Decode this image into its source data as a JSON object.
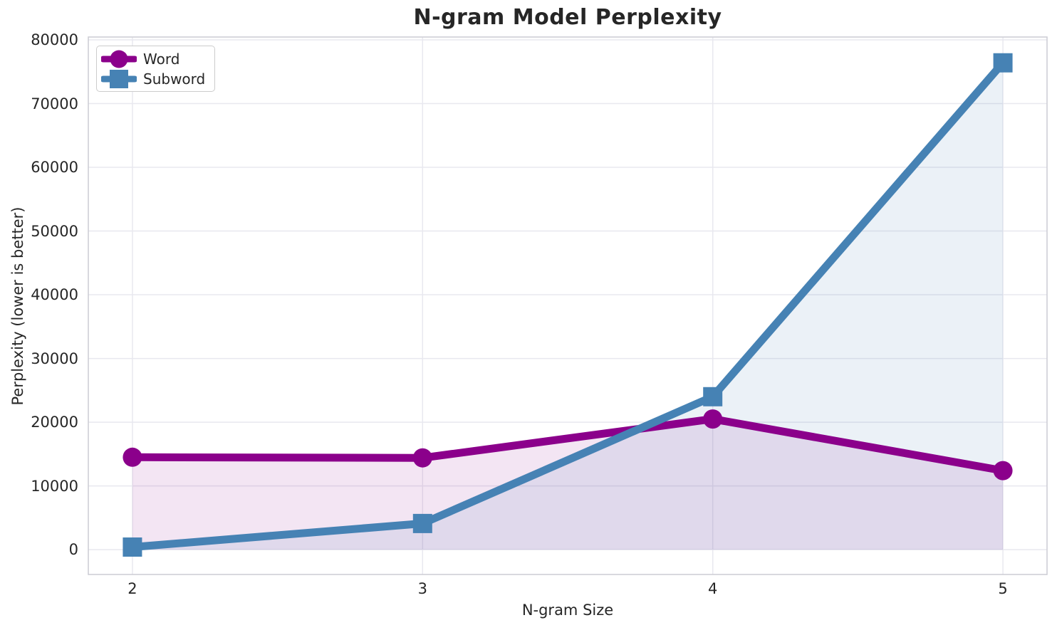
{
  "chart_data": {
    "type": "line",
    "title": "N-gram Model Perplexity",
    "xlabel": "N-gram Size",
    "ylabel": "Perplexity (lower is better)",
    "x": [
      2,
      3,
      4,
      5
    ],
    "x_tick_labels": [
      "2",
      "3",
      "4",
      "5"
    ],
    "y_ticks": [
      0,
      10000,
      20000,
      30000,
      40000,
      50000,
      60000,
      70000,
      80000
    ],
    "y_tick_labels": [
      "0",
      "10000",
      "20000",
      "30000",
      "40000",
      "50000",
      "60000",
      "70000",
      "80000"
    ],
    "xlim": [
      1.848,
      5.152
    ],
    "ylim": [
      -3900,
      80450
    ],
    "grid": true,
    "legend_position": "upper-left",
    "fill_to_baseline": 0,
    "series": [
      {
        "name": "Word",
        "marker": "circle",
        "color": "#8B008B",
        "fill_color": "rgba(139,0,139,0.10)",
        "values": [
          14500,
          14400,
          20500,
          12400
        ]
      },
      {
        "name": "Subword",
        "marker": "square",
        "color": "#4682B4",
        "fill_color": "rgba(70,130,180,0.11)",
        "values": [
          400,
          4100,
          24000,
          76400
        ]
      }
    ],
    "colors": {
      "background": "#ffffff",
      "grid": "#e8e8ef",
      "spine": "#ccccd4",
      "text": "#262626"
    }
  }
}
